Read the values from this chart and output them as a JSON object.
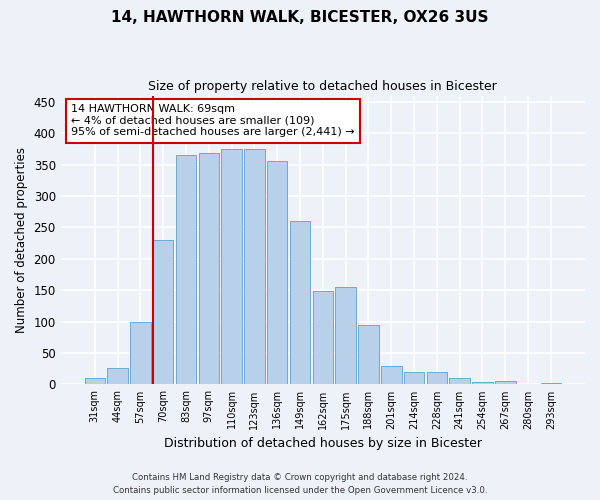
{
  "title1": "14, HAWTHORN WALK, BICESTER, OX26 3US",
  "title2": "Size of property relative to detached houses in Bicester",
  "xlabel": "Distribution of detached houses by size in Bicester",
  "ylabel": "Number of detached properties",
  "bar_color": "#b8d0ea",
  "bar_edge_color": "#6aaad4",
  "categories": [
    "31sqm",
    "44sqm",
    "57sqm",
    "70sqm",
    "83sqm",
    "97sqm",
    "110sqm",
    "123sqm",
    "136sqm",
    "149sqm",
    "162sqm",
    "175sqm",
    "188sqm",
    "201sqm",
    "214sqm",
    "228sqm",
    "241sqm",
    "254sqm",
    "267sqm",
    "280sqm",
    "293sqm"
  ],
  "values": [
    10,
    26,
    100,
    230,
    365,
    368,
    375,
    375,
    355,
    260,
    148,
    155,
    95,
    30,
    20,
    20,
    10,
    4,
    5,
    1,
    3
  ],
  "vline_color": "#cc0000",
  "vline_index": 2.575,
  "annotation_text": "14 HAWTHORN WALK: 69sqm\n← 4% of detached houses are smaller (109)\n95% of semi-detached houses are larger (2,441) →",
  "annotation_box_color": "white",
  "annotation_box_edge_color": "#cc0000",
  "ylim": [
    0,
    460
  ],
  "yticks": [
    0,
    50,
    100,
    150,
    200,
    250,
    300,
    350,
    400,
    450
  ],
  "footer1": "Contains HM Land Registry data © Crown copyright and database right 2024.",
  "footer2": "Contains public sector information licensed under the Open Government Licence v3.0.",
  "background_color": "#edf2f9"
}
